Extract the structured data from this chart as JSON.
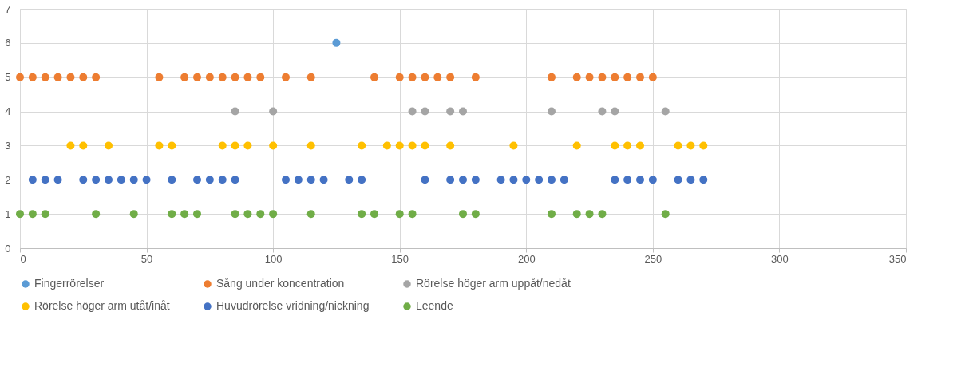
{
  "chart_data": {
    "type": "scatter",
    "xlim": [
      0,
      350
    ],
    "xticks": [
      0,
      50,
      100,
      150,
      200,
      250,
      300,
      350
    ],
    "ylim": [
      0,
      7
    ],
    "yticks": [
      0,
      1,
      2,
      3,
      4,
      5,
      6,
      7
    ],
    "grid": true,
    "legend": "bottom",
    "marker": "circle",
    "series": [
      {
        "name": "Fingerrörelser",
        "color": "#5b9bd5",
        "x": [
          125
        ],
        "values": [
          6
        ]
      },
      {
        "name": "Sång under koncentration",
        "color": "#ed7d31",
        "x": [
          0,
          5,
          10,
          15,
          20,
          25,
          30,
          55,
          65,
          70,
          75,
          80,
          85,
          90,
          95,
          105,
          115,
          140,
          150,
          155,
          160,
          165,
          170,
          180,
          210,
          220,
          225,
          230,
          235,
          240,
          245,
          250
        ],
        "values": [
          5,
          5,
          5,
          5,
          5,
          5,
          5,
          5,
          5,
          5,
          5,
          5,
          5,
          5,
          5,
          5,
          5,
          5,
          5,
          5,
          5,
          5,
          5,
          5,
          5,
          5,
          5,
          5,
          5,
          5,
          5,
          5
        ]
      },
      {
        "name": "Rörelse höger arm uppåt/nedåt",
        "color": "#a5a5a5",
        "x": [
          85,
          100,
          155,
          160,
          170,
          175,
          210,
          230,
          235,
          255
        ],
        "values": [
          4,
          4,
          4,
          4,
          4,
          4,
          4,
          4,
          4,
          4
        ]
      },
      {
        "name": "Rörelse höger arm utåt/inåt",
        "color": "#ffc000",
        "x": [
          20,
          25,
          35,
          55,
          60,
          80,
          85,
          90,
          100,
          115,
          135,
          145,
          150,
          155,
          160,
          170,
          195,
          220,
          235,
          240,
          245,
          260,
          265,
          270
        ],
        "values": [
          3,
          3,
          3,
          3,
          3,
          3,
          3,
          3,
          3,
          3,
          3,
          3,
          3,
          3,
          3,
          3,
          3,
          3,
          3,
          3,
          3,
          3,
          3,
          3
        ]
      },
      {
        "name": "Huvudrörelse vridning/nickning",
        "color": "#4472c4",
        "x": [
          5,
          10,
          15,
          25,
          30,
          35,
          40,
          45,
          50,
          60,
          70,
          75,
          80,
          85,
          105,
          110,
          115,
          120,
          130,
          135,
          160,
          170,
          175,
          180,
          190,
          195,
          200,
          205,
          210,
          215,
          235,
          240,
          245,
          250,
          260,
          265,
          270
        ],
        "values": [
          2,
          2,
          2,
          2,
          2,
          2,
          2,
          2,
          2,
          2,
          2,
          2,
          2,
          2,
          2,
          2,
          2,
          2,
          2,
          2,
          2,
          2,
          2,
          2,
          2,
          2,
          2,
          2,
          2,
          2,
          2,
          2,
          2,
          2,
          2,
          2,
          2
        ]
      },
      {
        "name": "Leende",
        "color": "#70ad47",
        "x": [
          0,
          5,
          10,
          30,
          45,
          60,
          65,
          70,
          85,
          90,
          95,
          100,
          115,
          135,
          140,
          150,
          155,
          175,
          180,
          210,
          220,
          225,
          230,
          255
        ],
        "values": [
          1,
          1,
          1,
          1,
          1,
          1,
          1,
          1,
          1,
          1,
          1,
          1,
          1,
          1,
          1,
          1,
          1,
          1,
          1,
          1,
          1,
          1,
          1,
          1
        ]
      }
    ]
  }
}
